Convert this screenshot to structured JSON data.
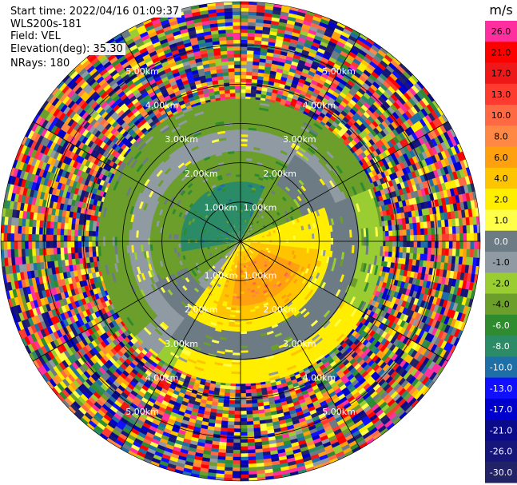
{
  "header": {
    "start_time": "Start time: 2022/04/16 01:09:37",
    "instrument": "WLS200s-181",
    "field": "Field: VEL",
    "elevation": "Elevation(deg): 35.30",
    "nrays": "NRays: 180"
  },
  "chart_data": {
    "type": "heatmap",
    "projection": "polar-ppi",
    "field": "VEL",
    "units": "m/s",
    "elevation_deg": 35.3,
    "n_rays": 180,
    "range_rings_km": [
      1,
      2,
      3,
      4,
      5
    ],
    "ring_labels": [
      "1.00km",
      "2.00km",
      "3.00km",
      "4.00km",
      "5.00km"
    ],
    "max_range_km": 6.1,
    "azimuth_lines_deg": [
      0,
      30,
      60,
      90,
      120,
      150,
      180,
      210,
      240,
      270,
      300,
      330
    ],
    "colorbar": {
      "label": "m/s",
      "ticks": [
        "26.0",
        "21.0",
        "17.0",
        "13.0",
        "10.0",
        "8.0",
        "6.0",
        "4.0",
        "2.0",
        "1.0",
        "0.0",
        "-1.0",
        "-2.0",
        "-4.0",
        "-6.0",
        "-8.0",
        "-10.0",
        "-13.0",
        "-17.0",
        "-21.0",
        "-26.0",
        "-30.0"
      ],
      "colors": [
        "#ff2fa0",
        "#ff0000",
        "#ee1818",
        "#ff3b2f",
        "#ff6a45",
        "#ff8844",
        "#ffa010",
        "#ffc400",
        "#ffee00",
        "#ffff4a",
        "#6d7b84",
        "#8f9aa2",
        "#9acd32",
        "#6b9e2a",
        "#2e8b2e",
        "#2a8b66",
        "#1e6ea8",
        "#1010ff",
        "#0000cd",
        "#0a0a8a",
        "#16167a",
        "#222266"
      ]
    },
    "regions": [
      {
        "description": "weak negative (green) inbound",
        "azimuth_deg": [
          260,
          20
        ],
        "range_km": [
          0,
          1.5
        ],
        "value": -6.0
      },
      {
        "description": "broad green band",
        "azimuth_deg": [
          230,
          60
        ],
        "range_km": [
          0.5,
          3.5
        ],
        "value": -2.0
      },
      {
        "description": "outbound positive (yellow/orange)",
        "azimuth_deg": [
          90,
          200
        ],
        "range_km": [
          0.3,
          2.2
        ],
        "value": 4.0
      },
      {
        "description": "yellow far band",
        "azimuth_deg": [
          120,
          220
        ],
        "range_km": [
          2.2,
          4.0
        ],
        "value": 2.0
      },
      {
        "description": "near-zero grey",
        "azimuth_deg": [
          0,
          360
        ],
        "range_km": [
          2.5,
          4.0
        ],
        "value": 0.0
      },
      {
        "description": "noise (random velocities)",
        "azimuth_deg": [
          0,
          360
        ],
        "range_km": [
          4.0,
          6.1
        ],
        "value": null
      }
    ]
  }
}
